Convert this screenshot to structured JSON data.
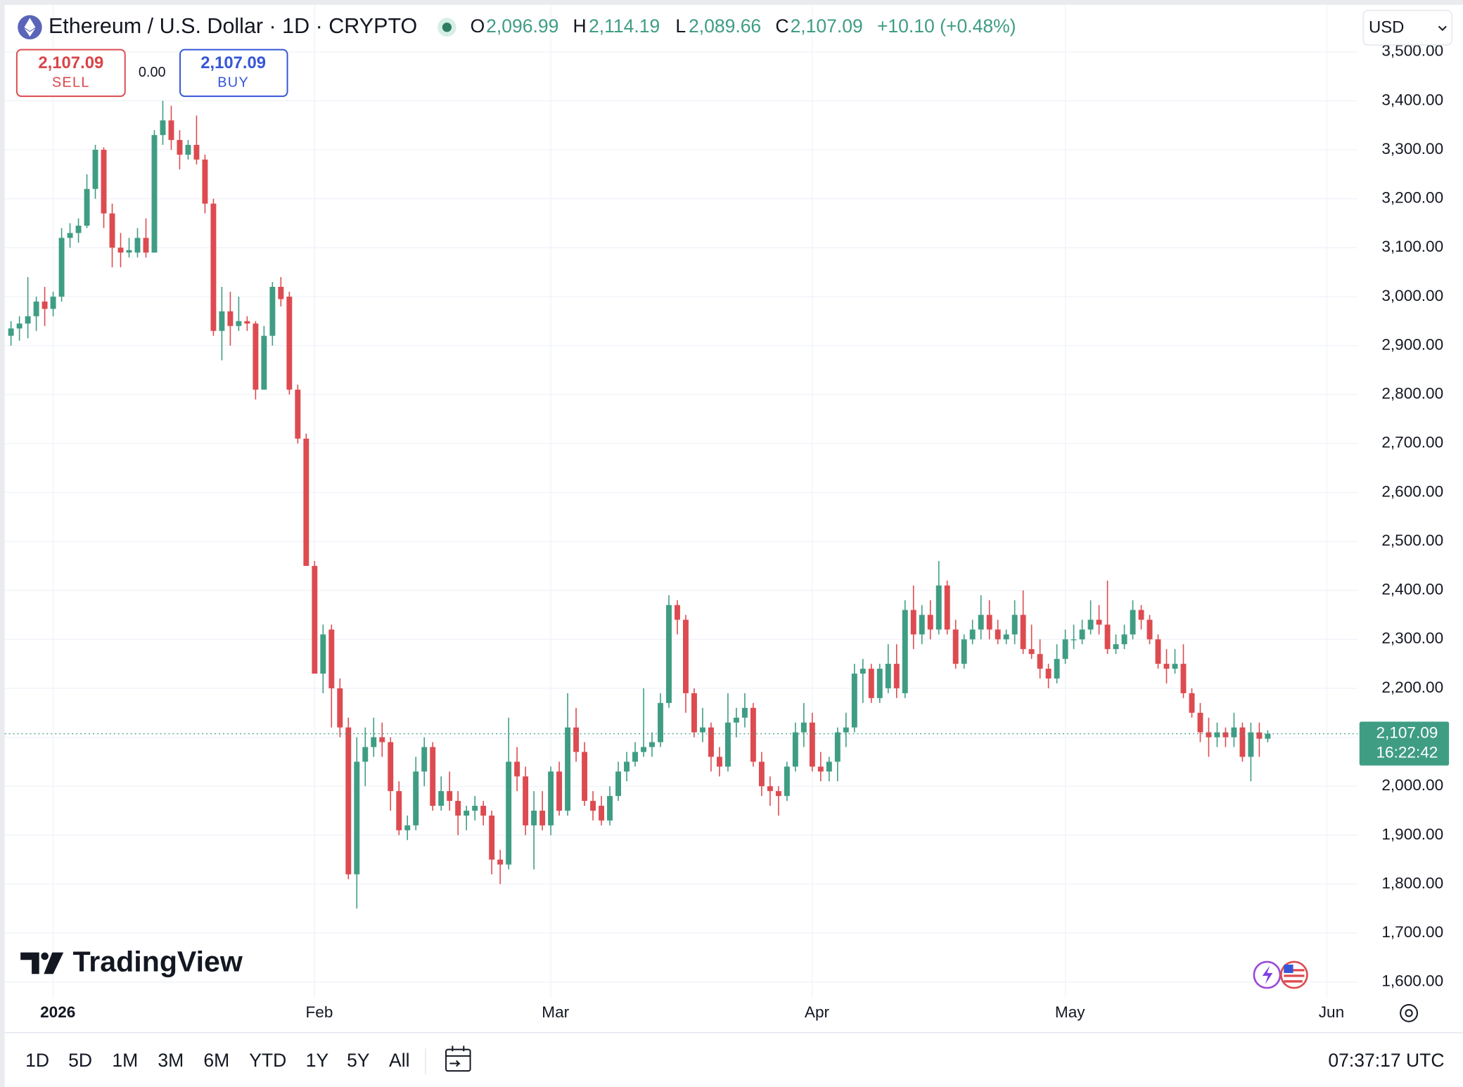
{
  "header": {
    "symbol": "Ethereum / U.S. Dollar · 1D · CRYPTO",
    "o_label": "O",
    "o_value": "2,096.99",
    "h_label": "H",
    "h_value": "2,114.19",
    "l_label": "L",
    "l_value": "2,089.66",
    "c_label": "C",
    "c_value": "2,107.09",
    "change": "+10.10 (+0.48%)",
    "currency": "USD"
  },
  "trade": {
    "sell_price": "2,107.09",
    "sell": "SELL",
    "spread": "0.00",
    "buy_price": "2,107.09",
    "buy": "BUY"
  },
  "logo": "TradingView",
  "toolbar": {
    "ranges": [
      "1D",
      "5D",
      "1M",
      "3M",
      "6M",
      "YTD",
      "1Y",
      "5Y",
      "All"
    ],
    "clock": "07:37:17 UTC"
  },
  "chart_data": {
    "type": "candlestick",
    "up_color": "#3f9d84",
    "down_color": "#dd4b50",
    "grid": true,
    "ylim": [
      1567,
      3596
    ],
    "yticks": [
      {
        "value": 1600,
        "label": "1,600.00"
      },
      {
        "value": 1700,
        "label": "1,700.00"
      },
      {
        "value": 1800,
        "label": "1,800.00"
      },
      {
        "value": 1900,
        "label": "1,900.00"
      },
      {
        "value": 2000,
        "label": "2,000.00"
      },
      {
        "value": 2100,
        "label": "2,100.00"
      },
      {
        "value": 2200,
        "label": "2,200.00"
      },
      {
        "value": 2300,
        "label": "2,300.00"
      },
      {
        "value": 2400,
        "label": "2,400.00"
      },
      {
        "value": 2500,
        "label": "2,500.00"
      },
      {
        "value": 2600,
        "label": "2,600.00"
      },
      {
        "value": 2700,
        "label": "2,700.00"
      },
      {
        "value": 2800,
        "label": "2,800.00"
      },
      {
        "value": 2900,
        "label": "2,900.00"
      },
      {
        "value": 3000,
        "label": "3,000.00"
      },
      {
        "value": 3100,
        "label": "3,100.00"
      },
      {
        "value": 3200,
        "label": "3,200.00"
      },
      {
        "value": 3300,
        "label": "3,300.00"
      },
      {
        "value": 3400,
        "label": "3,400.00"
      },
      {
        "value": 3500,
        "label": "3,500.00"
      }
    ],
    "xlim": [
      -0.75,
      159.65
    ],
    "xticks": [
      {
        "value": 5,
        "label": "2026"
      },
      {
        "value": 36,
        "label": "Feb"
      },
      {
        "value": 64,
        "label": "Mar"
      },
      {
        "value": 95,
        "label": "Apr"
      },
      {
        "value": 125,
        "label": "May"
      },
      {
        "value": 156,
        "label": "Jun"
      }
    ],
    "last_price": {
      "value": 2107.09,
      "label": "2,107.09"
    },
    "countdown": "16:22:42",
    "open": [
      2920,
      2935,
      2945,
      2960,
      2990,
      2975,
      3000,
      3120,
      3130,
      3145,
      3220,
      3300,
      3170,
      3100,
      3090,
      3090,
      3120,
      3090,
      3330,
      3360,
      3320,
      3290,
      3310,
      3280,
      3190,
      2930,
      2970,
      2940,
      2950,
      2945,
      2810,
      2920,
      3020,
      3000,
      2810,
      2710,
      2450,
      2230,
      2320,
      2200,
      2120,
      1820,
      2050,
      2080,
      2100,
      2090,
      1990,
      1910,
      1920,
      2030,
      2080,
      1960,
      1990,
      1970,
      1940,
      1950,
      1960,
      1940,
      1850,
      1840,
      2050,
      2020,
      1920,
      1950,
      1920,
      2030,
      1950,
      2120,
      2070,
      1970,
      1960,
      1930,
      1980,
      2030,
      2050,
      2070,
      2080,
      2090,
      2170,
      2370,
      2340,
      2190,
      2110,
      2120,
      2060,
      2040,
      2130,
      2140,
      2160,
      2050,
      2000,
      1990,
      1980,
      2040,
      2110,
      2130,
      2040,
      2030,
      2050,
      2110,
      2120,
      2230,
      2240,
      2180,
      2200,
      2250,
      2190,
      2360,
      2310,
      2350,
      2320,
      2410,
      2320,
      2250,
      2300,
      2320,
      2350,
      2320,
      2300,
      2310,
      2350,
      2280,
      2270,
      2240,
      2220,
      2260,
      2300,
      2300,
      2320,
      2340,
      2330,
      2280,
      2290,
      2310,
      2360,
      2340,
      2300,
      2250,
      2240,
      2250,
      2190,
      2150,
      2110,
      2100,
      2110,
      2100,
      2120,
      2060,
      2110,
      2096.99
    ],
    "high": [
      2950,
      2960,
      3040,
      3000,
      3020,
      3010,
      3140,
      3150,
      3160,
      3250,
      3310,
      3305,
      3190,
      3130,
      3120,
      3140,
      3160,
      3340,
      3400,
      3390,
      3340,
      3320,
      3370,
      3290,
      3200,
      3020,
      3010,
      3000,
      2960,
      2950,
      2940,
      3030,
      3040,
      3010,
      2820,
      2720,
      2460,
      2330,
      2330,
      2220,
      2140,
      2100,
      2120,
      2140,
      2130,
      2100,
      2010,
      1940,
      2060,
      2100,
      2090,
      2020,
      2030,
      1990,
      1960,
      1980,
      1970,
      1950,
      1870,
      2140,
      2080,
      2040,
      1990,
      1990,
      2040,
      2050,
      2190,
      2160,
      2090,
      1990,
      1980,
      2000,
      2050,
      2070,
      2090,
      2200,
      2110,
      2190,
      2390,
      2380,
      2350,
      2200,
      2160,
      2130,
      2080,
      2190,
      2160,
      2190,
      2170,
      2070,
      2020,
      2000,
      2050,
      2130,
      2170,
      2150,
      2070,
      2060,
      2120,
      2150,
      2250,
      2260,
      2250,
      2250,
      2290,
      2290,
      2380,
      2410,
      2370,
      2380,
      2460,
      2420,
      2340,
      2310,
      2340,
      2390,
      2380,
      2340,
      2320,
      2380,
      2400,
      2330,
      2300,
      2250,
      2290,
      2320,
      2330,
      2340,
      2380,
      2370,
      2420,
      2310,
      2330,
      2380,
      2370,
      2350,
      2310,
      2280,
      2280,
      2290,
      2200,
      2170,
      2140,
      2130,
      2120,
      2150,
      2130,
      2130,
      2130,
      2114.19
    ],
    "low": [
      2900,
      2910,
      2915,
      2930,
      2940,
      2960,
      2990,
      3100,
      3110,
      3140,
      3200,
      3140,
      3060,
      3060,
      3080,
      3080,
      3080,
      3090,
      3310,
      3300,
      3260,
      3280,
      3270,
      3170,
      2920,
      2870,
      2900,
      2930,
      2930,
      2790,
      2810,
      2900,
      2980,
      2800,
      2700,
      2450,
      2230,
      2190,
      2120,
      2100,
      1810,
      1750,
      2000,
      2060,
      2060,
      1950,
      1900,
      1890,
      1910,
      2000,
      1950,
      1950,
      1950,
      1900,
      1910,
      1930,
      1920,
      1820,
      1800,
      1830,
      1990,
      1900,
      1830,
      1910,
      1900,
      1940,
      1940,
      2050,
      1960,
      1930,
      1920,
      1920,
      1970,
      2010,
      2040,
      2060,
      2060,
      2080,
      2160,
      2310,
      2150,
      2100,
      2090,
      2030,
      2020,
      2030,
      2100,
      2120,
      2040,
      1980,
      1960,
      1940,
      1970,
      2030,
      2080,
      2030,
      2010,
      2010,
      2010,
      2080,
      2110,
      2170,
      2170,
      2170,
      2190,
      2180,
      2180,
      2280,
      2290,
      2300,
      2310,
      2310,
      2240,
      2240,
      2290,
      2300,
      2300,
      2290,
      2290,
      2290,
      2270,
      2260,
      2220,
      2200,
      2210,
      2250,
      2280,
      2290,
      2310,
      2310,
      2270,
      2270,
      2280,
      2300,
      2320,
      2290,
      2240,
      2210,
      2230,
      2180,
      2140,
      2090,
      2060,
      2080,
      2080,
      2080,
      2050,
      2010,
      2060,
      2089.66
    ],
    "close": [
      2935,
      2945,
      2960,
      2990,
      2975,
      3000,
      3120,
      3130,
      3145,
      3220,
      3300,
      3170,
      3100,
      3090,
      3095,
      3120,
      3090,
      3330,
      3360,
      3320,
      3290,
      3310,
      3280,
      3190,
      2930,
      2970,
      2940,
      2950,
      2945,
      2810,
      2920,
      3020,
      2995,
      2810,
      2710,
      2450,
      2230,
      2310,
      2200,
      2120,
      1820,
      2050,
      2080,
      2100,
      2090,
      1990,
      1910,
      1920,
      2030,
      2080,
      1960,
      1990,
      1970,
      1940,
      1950,
      1960,
      1940,
      1850,
      1840,
      2050,
      2020,
      1920,
      1950,
      1920,
      2030,
      1950,
      2120,
      2070,
      1970,
      1950,
      1930,
      1980,
      2030,
      2050,
      2070,
      2080,
      2090,
      2170,
      2370,
      2340,
      2190,
      2110,
      2120,
      2060,
      2040,
      2130,
      2140,
      2160,
      2050,
      2000,
      1990,
      1980,
      2040,
      2110,
      2130,
      2040,
      2030,
      2050,
      2110,
      2120,
      2230,
      2240,
      2180,
      2240,
      2250,
      2200,
      2360,
      2310,
      2350,
      2320,
      2410,
      2320,
      2250,
      2300,
      2320,
      2350,
      2320,
      2300,
      2310,
      2350,
      2280,
      2270,
      2240,
      2220,
      2260,
      2300,
      2300,
      2320,
      2340,
      2330,
      2280,
      2290,
      2310,
      2360,
      2340,
      2300,
      2250,
      2240,
      2250,
      2190,
      2150,
      2110,
      2100,
      2110,
      2100,
      2120,
      2060,
      2110,
      2097,
      2107.09
    ]
  }
}
